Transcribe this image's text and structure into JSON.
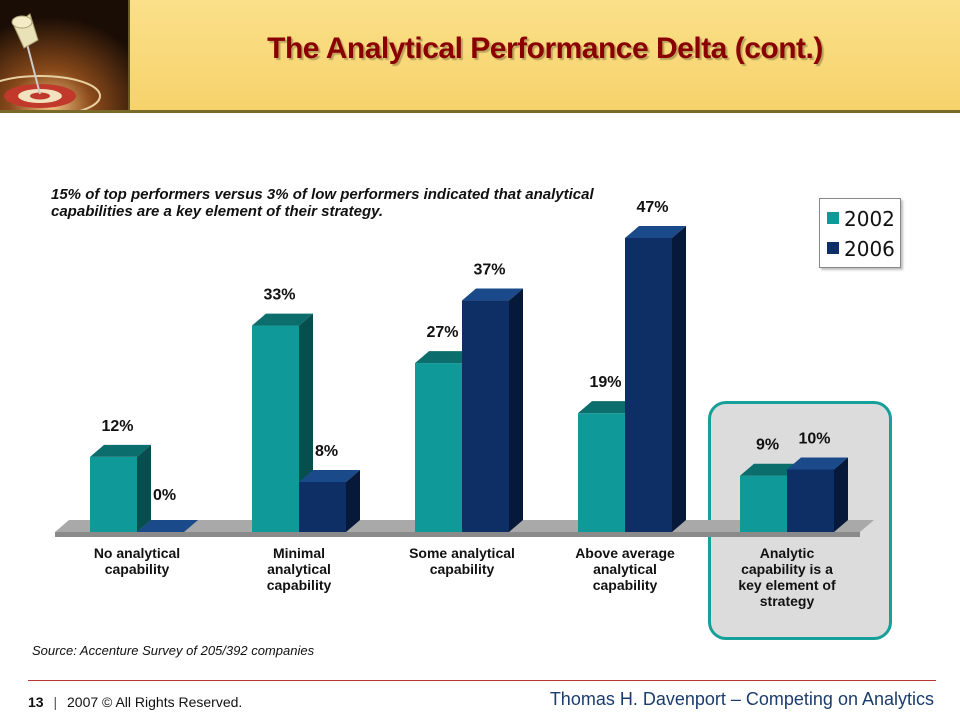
{
  "slide": {
    "title": "The Analytical Performance Delta (cont.)",
    "note": "15% of top performers versus 3% of low performers indicated that analytical capabilities are a key element of their strategy.",
    "source": "Source: Accenture Survey of 205/392 companies",
    "page_number": "13",
    "separator": "|",
    "copyright": "2007 © All Rights Reserved.",
    "author": "Thomas H. Davenport – Competing on Analytics"
  },
  "colors": {
    "series_2002": "#0f9a99",
    "series_2006": "#0e2f66",
    "title": "#8a0000",
    "header_bg": "#f6d26a",
    "highlight_border": "#17a09a"
  },
  "icons": {
    "logo": "pushpin-target-icon"
  },
  "chart_data": {
    "type": "bar",
    "categories": [
      "No analytical capability",
      "Minimal analytical capability",
      "Some analytical capability",
      "Above average analytical capability",
      "Analytic capability is a key element of strategy"
    ],
    "series": [
      {
        "name": "2002",
        "values": [
          12,
          33,
          27,
          19,
          9
        ]
      },
      {
        "name": "2006",
        "values": [
          0,
          8,
          37,
          47,
          10
        ]
      }
    ],
    "value_labels": [
      [
        "12%",
        "33%",
        "27%",
        "19%",
        "9%"
      ],
      [
        "0%",
        "8%",
        "37%",
        "47%",
        "10%"
      ]
    ],
    "ylim": [
      0,
      47
    ],
    "legend_position": "top-right",
    "grid": false,
    "highlighted_category": "Analytic capability is a key element of strategy"
  }
}
